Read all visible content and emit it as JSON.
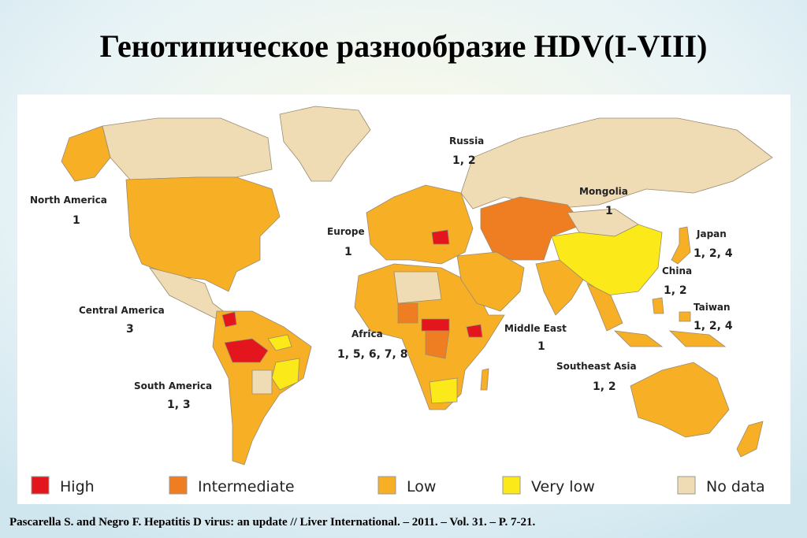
{
  "title": "Генотипическое разнообразие HDV(I-VIII)",
  "regions": [
    {
      "name": "North America",
      "genotypes": "1"
    },
    {
      "name": "Central America",
      "genotypes": "3"
    },
    {
      "name": "South America",
      "genotypes": "1, 3"
    },
    {
      "name": "Europe",
      "genotypes": "1"
    },
    {
      "name": "Africa",
      "genotypes": "1, 5, 6, 7, 8"
    },
    {
      "name": "Russia",
      "genotypes": "1, 2"
    },
    {
      "name": "Mongolia",
      "genotypes": "1"
    },
    {
      "name": "Middle East",
      "genotypes": "1"
    },
    {
      "name": "Japan",
      "genotypes": "1, 2, 4"
    },
    {
      "name": "China",
      "genotypes": "1, 2"
    },
    {
      "name": "Taiwan",
      "genotypes": "1, 2, 4"
    },
    {
      "name": "Southeast Asia",
      "genotypes": "1, 2"
    }
  ],
  "legend": [
    {
      "label": "High",
      "color": "#e3161e"
    },
    {
      "label": "Intermediate",
      "color": "#ef7d22"
    },
    {
      "label": "Low",
      "color": "#f7b026"
    },
    {
      "label": "Very low",
      "color": "#fbe91a"
    },
    {
      "label": "No data",
      "color": "#efdcb4"
    }
  ],
  "citation": "Pascarella S. and Negro F. Hepatitis D virus: an update // Liver International. – 2011. – Vol. 31. – P. 7-21."
}
